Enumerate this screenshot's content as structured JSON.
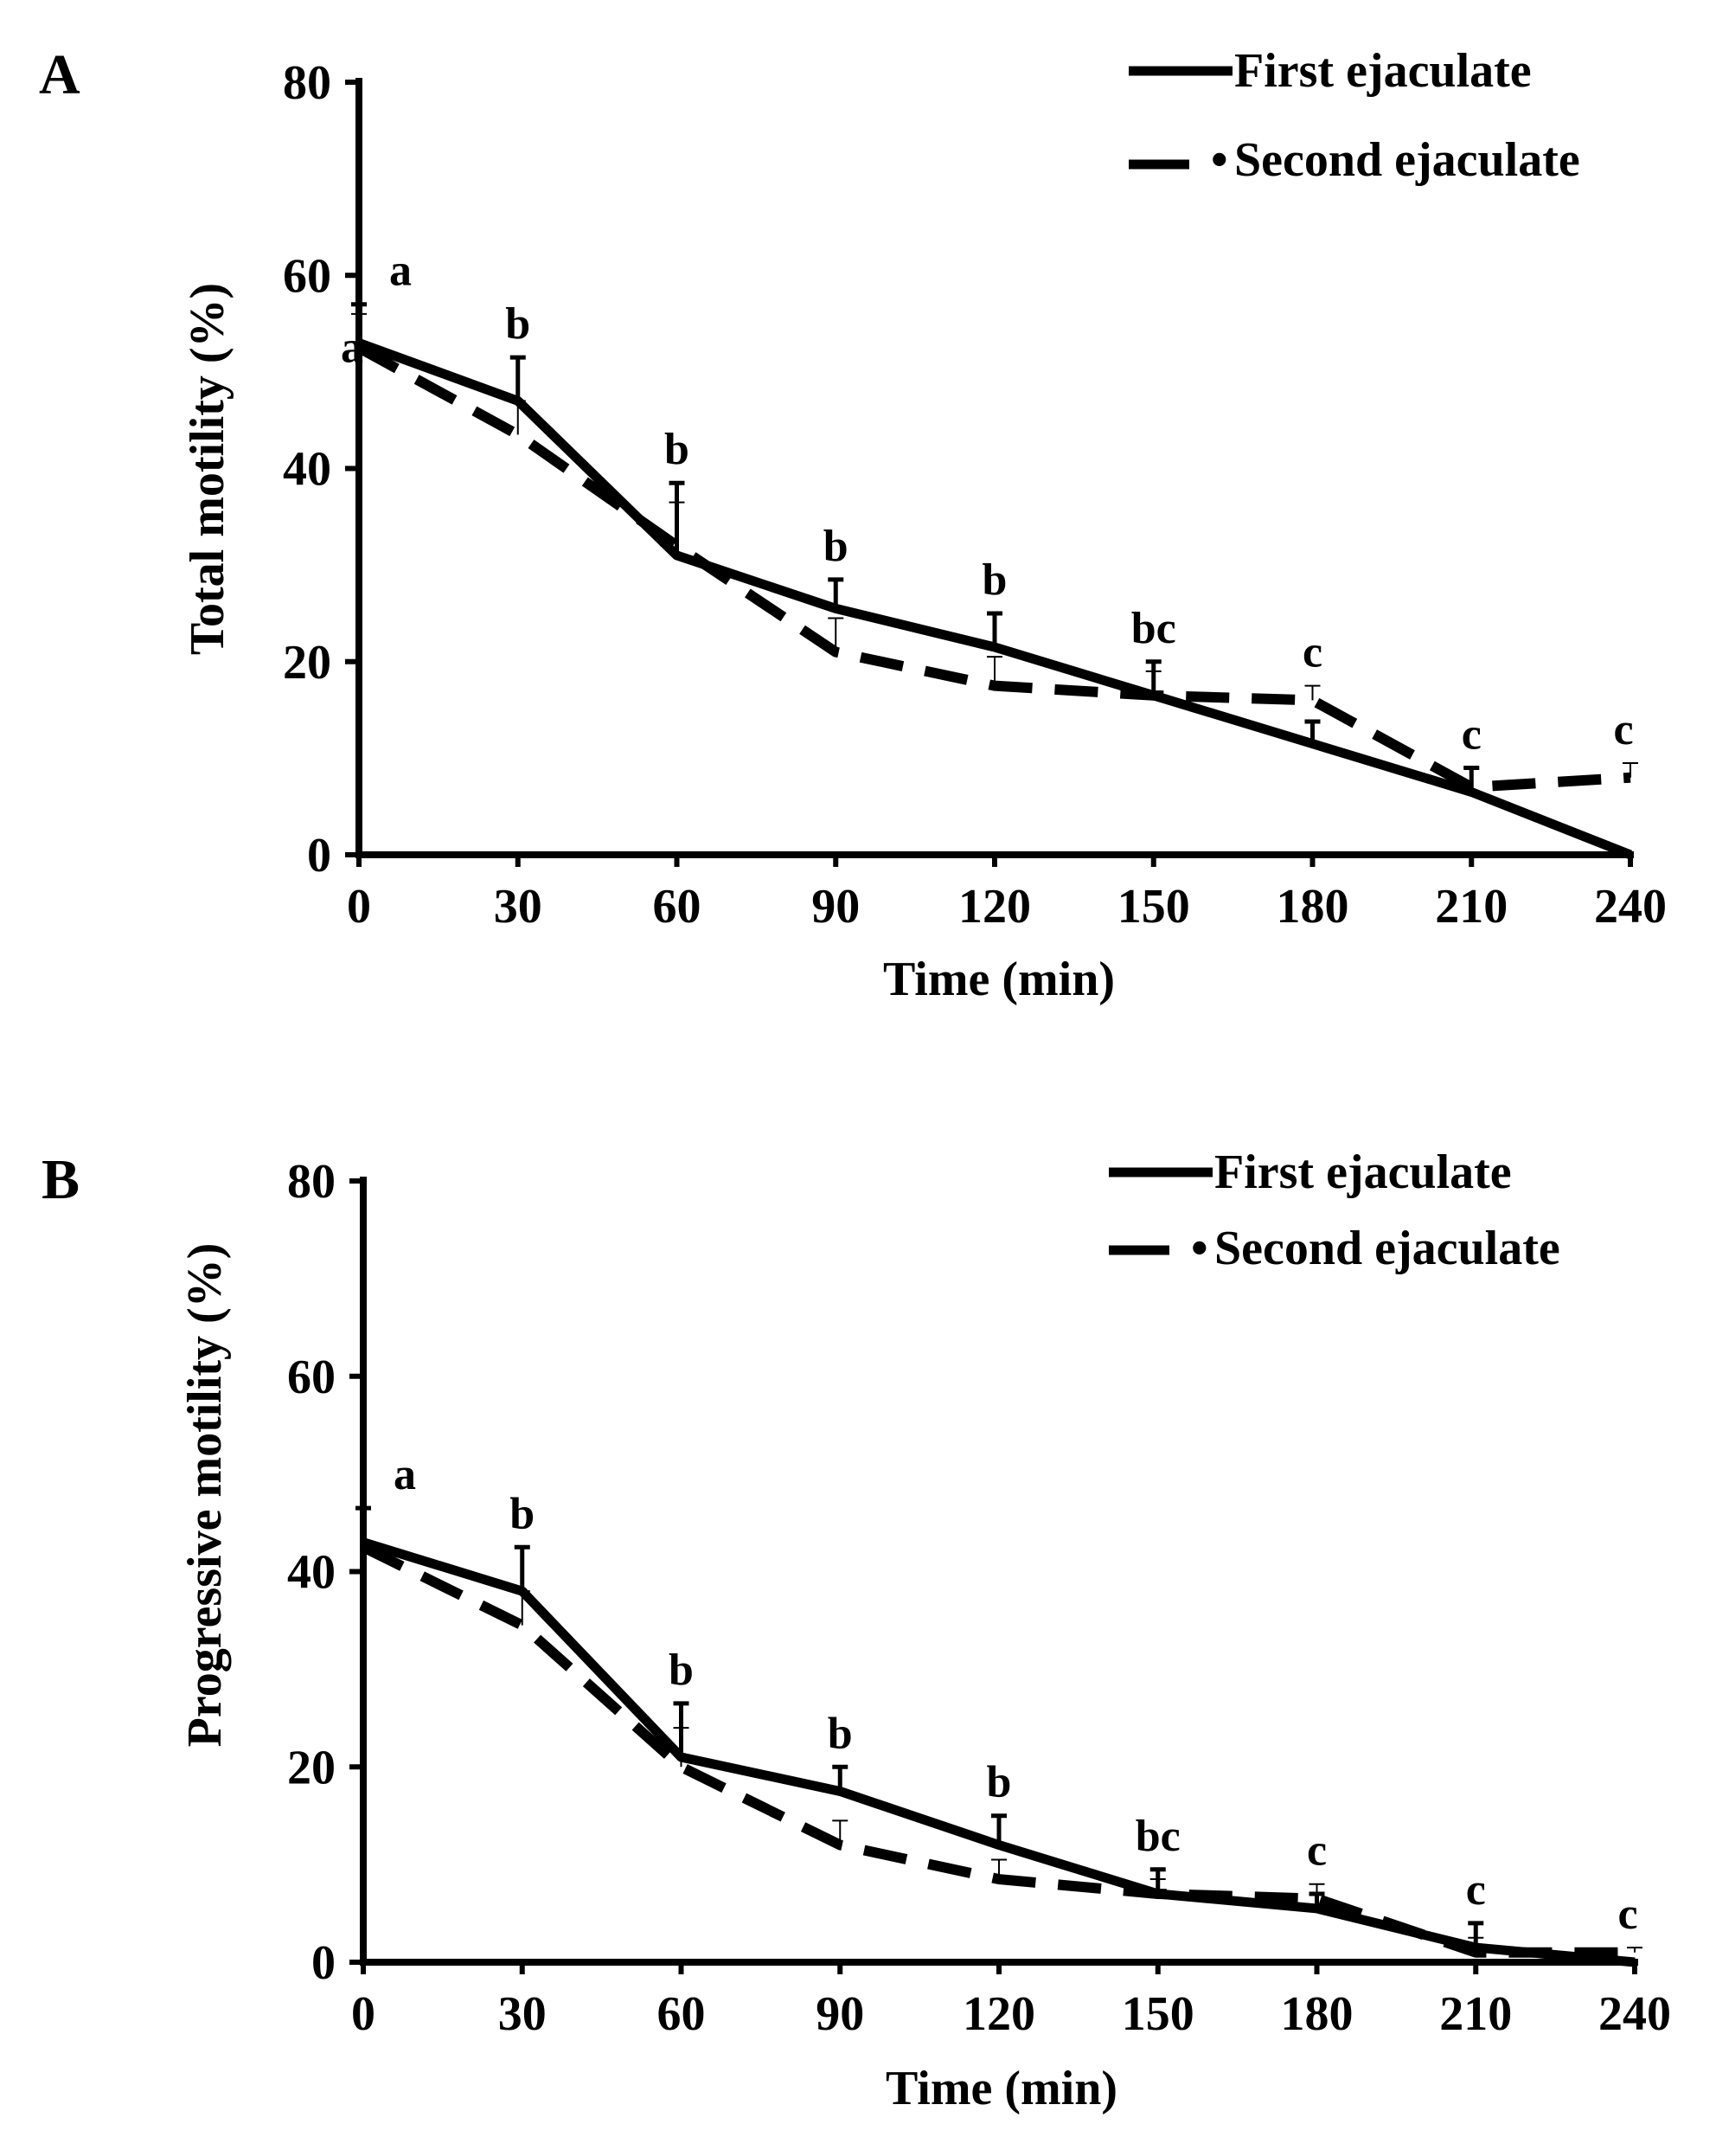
{
  "chart_data": [
    {
      "type": "line",
      "panel_label": "A",
      "xlabel": "Time (min)",
      "ylabel": "Total motility (%)",
      "x": [
        0,
        30,
        60,
        90,
        120,
        150,
        180,
        210,
        240
      ],
      "xlim": [
        0,
        240
      ],
      "ylim": [
        0,
        80
      ],
      "yticks": [
        0,
        20,
        40,
        60,
        80
      ],
      "series": [
        {
          "name": "First ejaculate",
          "style": "solid",
          "values": [
            53,
            47,
            31,
            25.5,
            21.5,
            16.5,
            11.5,
            6.5,
            0
          ],
          "error_top": [
            57,
            51.5,
            38.5,
            28.5,
            25,
            20,
            13.8,
            9,
            0
          ]
        },
        {
          "name": "Second ejaculate",
          "style": "dashed",
          "values": [
            52.5,
            43.5,
            32,
            21,
            17.5,
            16.5,
            16,
            7,
            8
          ],
          "error_top": [
            56,
            47,
            36.5,
            24.5,
            20.5,
            19,
            17.5,
            9,
            9.5
          ]
        }
      ],
      "annotations": [
        {
          "x": 0,
          "text": "a"
        },
        {
          "x": 30,
          "text": "b"
        },
        {
          "x": 60,
          "text": "b"
        },
        {
          "x": 90,
          "text": "b"
        },
        {
          "x": 120,
          "text": "b"
        },
        {
          "x": 150,
          "text": "bc"
        },
        {
          "x": 180,
          "text": "c"
        },
        {
          "x": 210,
          "text": "c"
        },
        {
          "x": 240,
          "text": "c"
        }
      ],
      "extra_annotations": [
        {
          "x": 0,
          "y": 51,
          "text": "a"
        }
      ],
      "legend_position": "top-right"
    },
    {
      "type": "line",
      "panel_label": "B",
      "xlabel": "Time (min)",
      "ylabel": "Progressive motility (%)",
      "x": [
        0,
        30,
        60,
        90,
        120,
        150,
        180,
        210,
        240
      ],
      "xlim": [
        0,
        240
      ],
      "ylim": [
        0,
        80
      ],
      "yticks": [
        0,
        20,
        40,
        60,
        80
      ],
      "series": [
        {
          "name": "First ejaculate",
          "style": "solid",
          "values": [
            43,
            38,
            21,
            17.5,
            12,
            7,
            5.5,
            1.5,
            0
          ],
          "error_top": [
            46.5,
            42.5,
            26.5,
            20,
            15,
            9.5,
            7,
            4,
            0
          ]
        },
        {
          "name": "Second ejaculate",
          "style": "dashed",
          "values": [
            42.5,
            34.5,
            20,
            12,
            8.5,
            7,
            6.5,
            1,
            1
          ],
          "error_top": [
            46.5,
            38,
            24,
            14.5,
            10.5,
            8.5,
            8,
            2.5,
            1.5
          ]
        }
      ],
      "annotations": [
        {
          "x": 0,
          "text": "a"
        },
        {
          "x": 30,
          "text": "b"
        },
        {
          "x": 60,
          "text": "b"
        },
        {
          "x": 90,
          "text": "b"
        },
        {
          "x": 120,
          "text": "b"
        },
        {
          "x": 150,
          "text": "bc"
        },
        {
          "x": 180,
          "text": "c"
        },
        {
          "x": 210,
          "text": "c"
        },
        {
          "x": 240,
          "text": "c"
        }
      ],
      "extra_annotations": [],
      "legend_position": "top-right"
    }
  ],
  "legend_labels": {
    "first": "First ejaculate",
    "second": "Second ejaculate",
    "second_prefix": "•"
  }
}
